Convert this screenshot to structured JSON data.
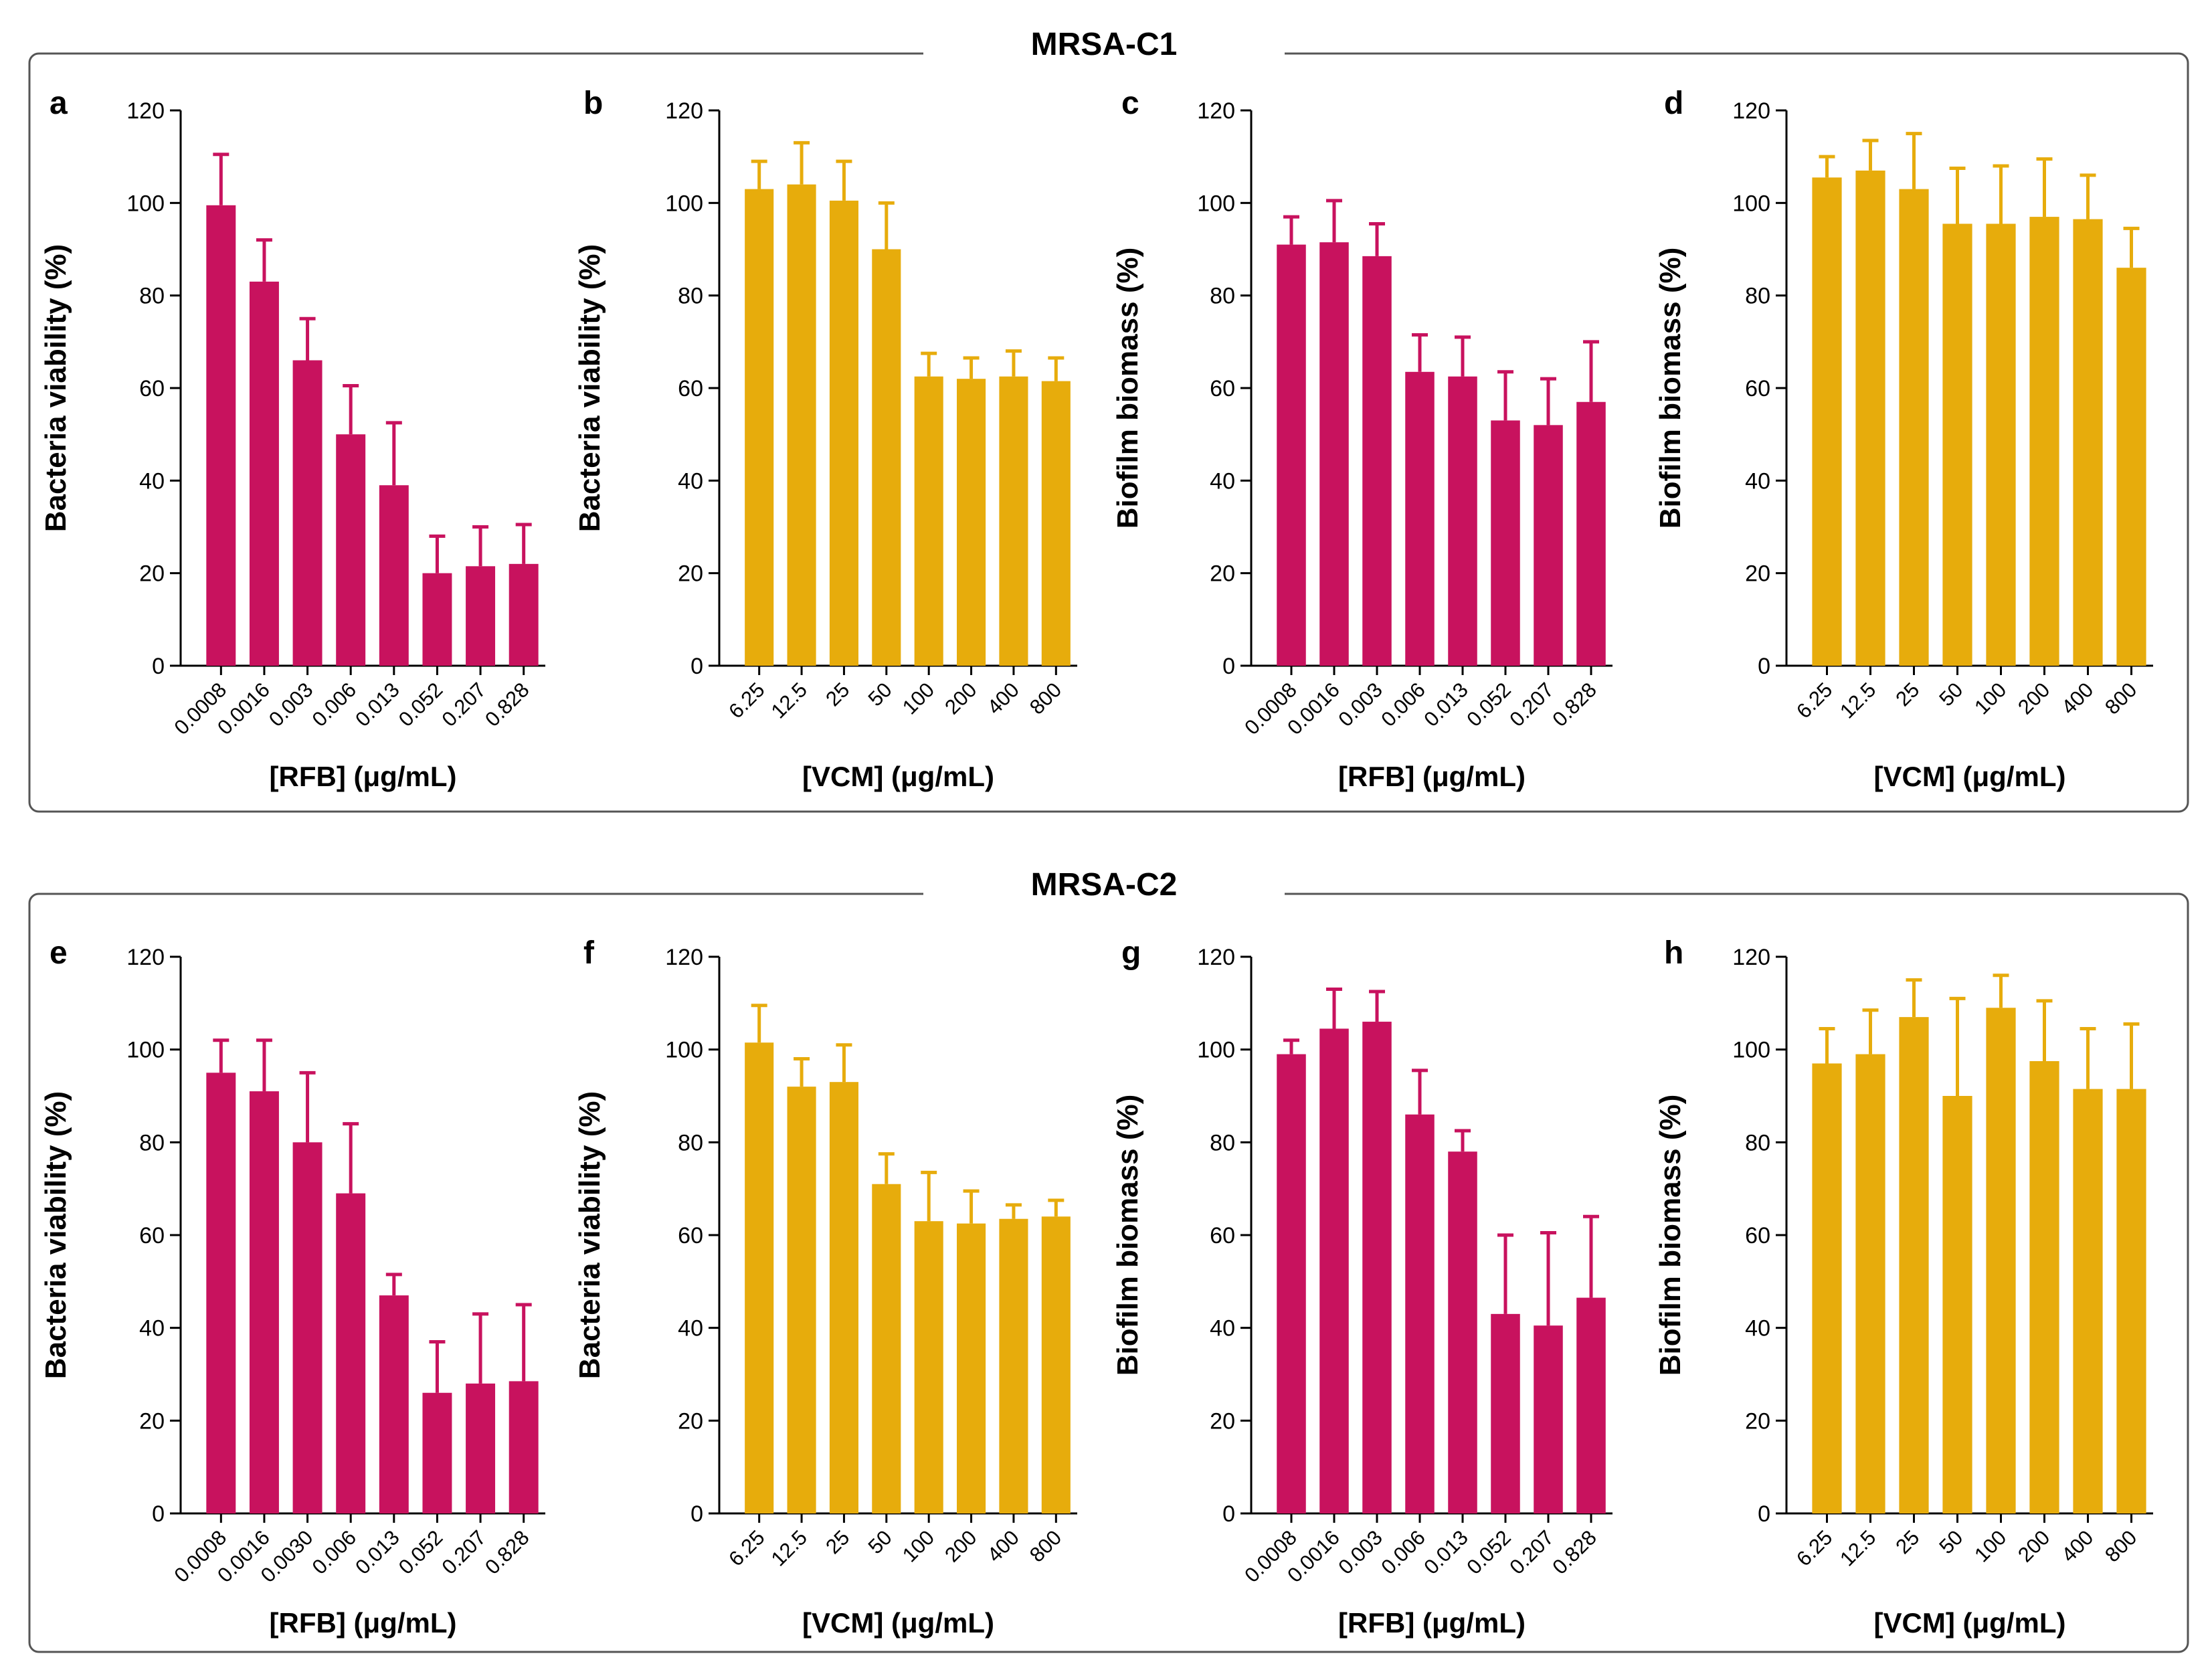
{
  "colors": {
    "rfb": "#c8125e",
    "vcm": "#e7ac0c",
    "frame": "#555555",
    "axis": "#000000"
  },
  "groups": [
    {
      "title": "MRSA-C1"
    },
    {
      "title": "MRSA-C2"
    }
  ],
  "chart_data": [
    {
      "panel": "a",
      "group": 0,
      "col": 0,
      "type": "bar",
      "series_color": "rfb",
      "categories": [
        "0.0008",
        "0.0016",
        "0.003",
        "0.006",
        "0.013",
        "0.052",
        "0.207",
        "0.828"
      ],
      "values": [
        99.5,
        83,
        66,
        50,
        39,
        20,
        21.5,
        22
      ],
      "errors": [
        11,
        9,
        9,
        10.5,
        13.5,
        8,
        8.5,
        8.5
      ],
      "ylabel": "Bacteria viability (%)",
      "xlabel": "[RFB] (μg/mL)",
      "yticks": [
        "0",
        "20",
        "40",
        "60",
        "80",
        "100",
        "120"
      ],
      "ylim": [
        0,
        120
      ]
    },
    {
      "panel": "b",
      "group": 0,
      "col": 1,
      "type": "bar",
      "series_color": "vcm",
      "categories": [
        "6.25",
        "12.5",
        "25",
        "50",
        "100",
        "200",
        "400",
        "800"
      ],
      "values": [
        103,
        104,
        100.5,
        90,
        62.5,
        62,
        62.5,
        61.5
      ],
      "errors": [
        6,
        9,
        8.5,
        10,
        5,
        4.5,
        5.5,
        5
      ],
      "ylabel": "Bacteria viability (%)",
      "xlabel": "[VCM] (μg/mL)",
      "yticks": [
        "0",
        "20",
        "40",
        "60",
        "80",
        "100",
        "120"
      ],
      "ylim": [
        0,
        120
      ]
    },
    {
      "panel": "c",
      "group": 0,
      "col": 2,
      "type": "bar",
      "series_color": "rfb",
      "categories": [
        "0.0008",
        "0.0016",
        "0.003",
        "0.006",
        "0.013",
        "0.052",
        "0.207",
        "0.828"
      ],
      "values": [
        91,
        91.5,
        88.5,
        63.5,
        62.5,
        53,
        52,
        57
      ],
      "errors": [
        6,
        9,
        7,
        8,
        8.5,
        10.5,
        10,
        13
      ],
      "ylabel": "Biofilm biomass (%)",
      "xlabel": "[RFB] (μg/mL)",
      "yticks": [
        "0",
        "20",
        "40",
        "60",
        "80",
        "100",
        "120"
      ],
      "ylim": [
        0,
        120
      ]
    },
    {
      "panel": "d",
      "group": 0,
      "col": 3,
      "type": "bar",
      "series_color": "vcm",
      "categories": [
        "6.25",
        "12.5",
        "25",
        "50",
        "100",
        "200",
        "400",
        "800"
      ],
      "values": [
        105.5,
        107,
        103,
        95.5,
        95.5,
        97,
        96.5,
        86
      ],
      "errors": [
        4.5,
        6.5,
        12,
        12,
        12.5,
        12.5,
        9.5,
        8.5
      ],
      "ylabel": "Biofilm biomass (%)",
      "xlabel": "[VCM] (μg/mL)",
      "yticks": [
        "0",
        "20",
        "40",
        "60",
        "80",
        "100",
        "120"
      ],
      "ylim": [
        0,
        120
      ]
    },
    {
      "panel": "e",
      "group": 1,
      "col": 0,
      "type": "bar",
      "series_color": "rfb",
      "categories": [
        "0.0008",
        "0.0016",
        "0.0030",
        "0.006",
        "0.013",
        "0.052",
        "0.207",
        "0.828"
      ],
      "values": [
        95,
        91,
        80,
        69,
        47,
        26,
        28,
        28.5
      ],
      "errors": [
        7,
        11,
        15,
        15,
        4.5,
        11,
        15,
        16.5
      ],
      "ylabel": "Bacteria viability (%)",
      "xlabel": "[RFB] (μg/mL)",
      "yticks": [
        "0",
        "20",
        "40",
        "60",
        "80",
        "100",
        "120"
      ],
      "ylim": [
        0,
        120
      ]
    },
    {
      "panel": "f",
      "group": 1,
      "col": 1,
      "type": "bar",
      "series_color": "vcm",
      "categories": [
        "6.25",
        "12.5",
        "25",
        "50",
        "100",
        "200",
        "400",
        "800"
      ],
      "values": [
        101.5,
        92,
        93,
        71,
        63,
        62.5,
        63.5,
        64
      ],
      "errors": [
        8,
        6,
        8,
        6.5,
        10.5,
        7,
        3,
        3.5
      ],
      "ylabel": "Bacteria viability (%)",
      "xlabel": "[VCM] (μg/mL)",
      "yticks": [
        "0",
        "20",
        "40",
        "60",
        "80",
        "100",
        "120"
      ],
      "ylim": [
        0,
        120
      ]
    },
    {
      "panel": "g",
      "group": 1,
      "col": 2,
      "type": "bar",
      "series_color": "rfb",
      "categories": [
        "0.0008",
        "0.0016",
        "0.003",
        "0.006",
        "0.013",
        "0.052",
        "0.207",
        "0.828"
      ],
      "values": [
        99,
        104.5,
        106,
        86,
        78,
        43,
        40.5,
        46.5
      ],
      "errors": [
        3,
        8.5,
        6.5,
        9.5,
        4.5,
        17,
        20,
        17.5
      ],
      "ylabel": "Biofilm biomass (%)",
      "xlabel": "[RFB] (μg/mL)",
      "yticks": [
        "0",
        "20",
        "40",
        "60",
        "80",
        "100",
        "120"
      ],
      "ylim": [
        0,
        120
      ]
    },
    {
      "panel": "h",
      "group": 1,
      "col": 3,
      "type": "bar",
      "series_color": "vcm",
      "categories": [
        "6.25",
        "12.5",
        "25",
        "50",
        "100",
        "200",
        "400",
        "800"
      ],
      "values": [
        97,
        99,
        107,
        90,
        109,
        97.5,
        91.5,
        91.5
      ],
      "errors": [
        7.5,
        9.5,
        8,
        21,
        7,
        13,
        13,
        14
      ],
      "ylabel": "Biofilm biomass (%)",
      "xlabel": "[VCM] (μg/mL)",
      "yticks": [
        "0",
        "20",
        "40",
        "60",
        "80",
        "100",
        "120"
      ],
      "ylim": [
        0,
        120
      ]
    }
  ]
}
